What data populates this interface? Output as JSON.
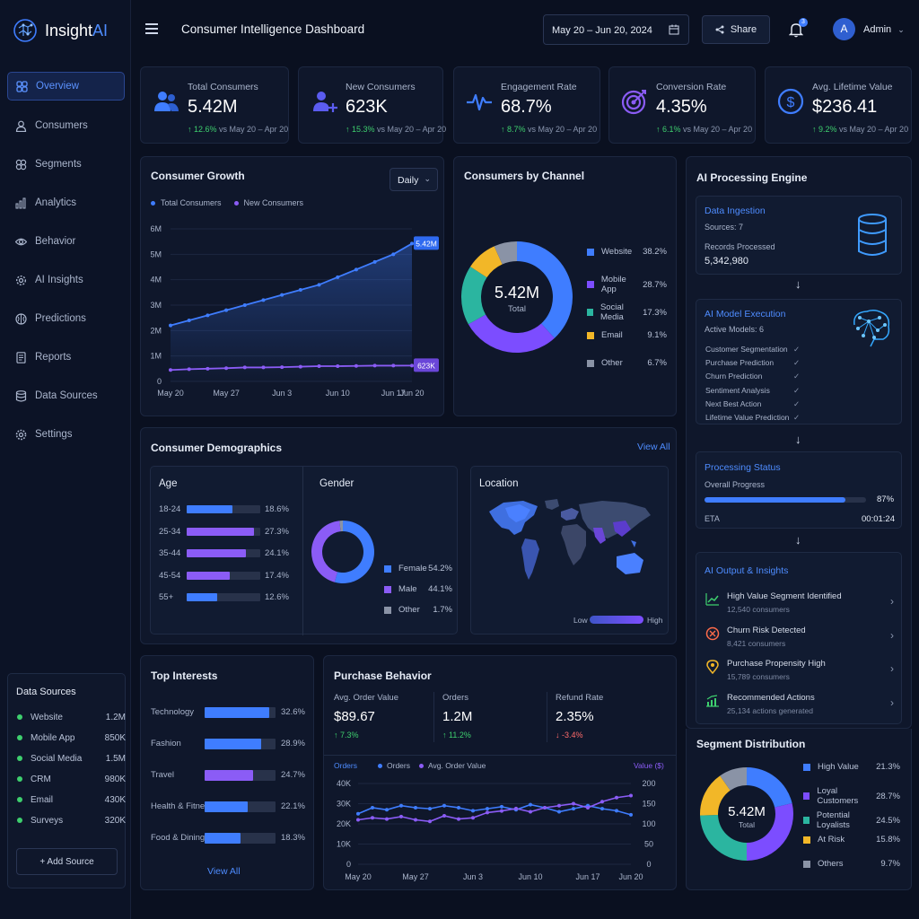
{
  "app": {
    "name_a": "Insight",
    "name_b": "AI"
  },
  "header": {
    "title": "Consumer Intelligence Dashboard",
    "date_range": "May 20 – Jun 20, 2024",
    "share": "Share",
    "notif_count": "3",
    "avatar_initial": "A",
    "user": "Admin"
  },
  "sidebar": {
    "items": [
      {
        "label": "Overview",
        "icon": "grid-icon"
      },
      {
        "label": "Consumers",
        "icon": "user-icon"
      },
      {
        "label": "Segments",
        "icon": "segments-icon"
      },
      {
        "label": "Analytics",
        "icon": "bar-chart-icon"
      },
      {
        "label": "Behavior",
        "icon": "eye-icon"
      },
      {
        "label": "AI Insights",
        "icon": "gear-icon"
      },
      {
        "label": "Predictions",
        "icon": "brain-icon"
      },
      {
        "label": "Reports",
        "icon": "document-icon"
      },
      {
        "label": "Data Sources",
        "icon": "database-icon"
      },
      {
        "label": "Settings",
        "icon": "settings-icon"
      }
    ],
    "data_sources": {
      "title": "Data Sources",
      "rows": [
        {
          "name": "Website",
          "value": "1.2M"
        },
        {
          "name": "Mobile App",
          "value": "850K"
        },
        {
          "name": "Social Media",
          "value": "1.5M"
        },
        {
          "name": "CRM",
          "value": "980K"
        },
        {
          "name": "Email",
          "value": "430K"
        },
        {
          "name": "Surveys",
          "value": "320K"
        }
      ],
      "add_label": "+ Add Source"
    }
  },
  "kpis": [
    {
      "label": "Total Consumers",
      "value": "5.42M",
      "delta": "↑ 12.6%",
      "period": "vs May 20 – Apr 20",
      "icon": "users-icon"
    },
    {
      "label": "New Consumers",
      "value": "623K",
      "delta": "↑ 15.3%",
      "period": "vs May 20 – Apr 20",
      "icon": "user-plus-icon"
    },
    {
      "label": "Engagement Rate",
      "value": "68.7%",
      "delta": "↑ 8.7%",
      "period": "vs May 20 – Apr 20",
      "icon": "pulse-icon"
    },
    {
      "label": "Conversion Rate",
      "value": "4.35%",
      "delta": "↑ 6.1%",
      "period": "vs May 20 – Apr 20",
      "icon": "target-icon"
    },
    {
      "label": "Avg. Lifetime Value",
      "value": "$236.41",
      "delta": "↑ 9.2%",
      "period": "vs May 20 – Apr 20",
      "icon": "dollar-icon"
    }
  ],
  "growth": {
    "title": "Consumer Growth",
    "period_select": "Daily",
    "legend": [
      "Total Consumers",
      "New Consumers"
    ],
    "end_labels": [
      "5.42M",
      "623K"
    ]
  },
  "channel": {
    "title": "Consumers by Channel",
    "center_value": "5.42M",
    "center_label": "Total"
  },
  "demographics": {
    "title": "Consumer Demographics",
    "view_all": "View All",
    "age_title": "Age",
    "gender_title": "Gender",
    "location_title": "Location",
    "legend_low": "Low",
    "legend_high": "High"
  },
  "interests": {
    "title": "Top Interests",
    "view_all": "View All"
  },
  "purchase": {
    "title": "Purchase Behavior",
    "stats": [
      {
        "label": "Avg. Order Value",
        "value": "$89.67",
        "delta": "↑ 7.3%"
      },
      {
        "label": "Orders",
        "value": "1.2M",
        "delta": "↑ 11.2%"
      },
      {
        "label": "Refund Rate",
        "value": "2.35%",
        "delta": "↓ -3.4%"
      }
    ],
    "left_axis_label": "Orders",
    "right_axis_label": "Value ($)",
    "legend": [
      "Orders",
      "Avg. Order Value"
    ]
  },
  "ai_engine": {
    "title": "AI Processing Engine",
    "ingestion": {
      "title": "Data Ingestion",
      "sources": "Sources: 7",
      "records_label": "Records Processed",
      "records": "5,342,980"
    },
    "model": {
      "title": "AI Model Execution",
      "active": "Active Models: 6",
      "models": [
        "Customer Segmentation",
        "Purchase Prediction",
        "Churn Prediction",
        "Sentiment Analysis",
        "Next Best Action",
        "Lifetime Value Prediction"
      ],
      "check": "✓"
    },
    "status": {
      "title": "Processing Status",
      "progress_label": "Overall Progress",
      "progress_text": "87%",
      "progress": 0.87,
      "eta_label": "ETA",
      "eta": "00:01:24"
    },
    "outputs": {
      "title": "AI Output & Insights",
      "rows": [
        {
          "title": "High Value Segment Identified",
          "sub": "12,540 consumers",
          "icon": "trend-up-icon"
        },
        {
          "title": "Churn Risk Detected",
          "sub": "8,421 consumers",
          "icon": "alert-icon"
        },
        {
          "title": "Purchase Propensity High",
          "sub": "15,789 consumers",
          "icon": "location-pin-icon"
        },
        {
          "title": "Recommended Actions",
          "sub": "25,134 actions generated",
          "icon": "chart-up-icon"
        }
      ]
    },
    "arrow": "↓"
  },
  "segments": {
    "title": "Segment Distribution",
    "center_value": "5.42M",
    "center_label": "Total"
  },
  "chart_data": [
    {
      "type": "area",
      "title": "Consumer Growth",
      "x": [
        "May 20",
        "May 23",
        "May 25",
        "May 27",
        "May 30",
        "Jun 1",
        "Jun 3",
        "Jun 6",
        "Jun 8",
        "Jun 10",
        "Jun 13",
        "Jun 15",
        "Jun 17",
        "Jun 20"
      ],
      "xticks": [
        "May 20",
        "May 27",
        "Jun 3",
        "Jun 10",
        "Jun 17",
        "Jun 20"
      ],
      "yticks": [
        "0",
        "1M",
        "2M",
        "3M",
        "4M",
        "5M",
        "6M"
      ],
      "ylim": [
        0,
        6
      ],
      "series": [
        {
          "name": "Total Consumers",
          "values": [
            2.2,
            2.4,
            2.6,
            2.8,
            3.0,
            3.2,
            3.4,
            3.6,
            3.8,
            4.1,
            4.4,
            4.7,
            5.0,
            5.42
          ],
          "color": "#3f7dff"
        },
        {
          "name": "New Consumers",
          "values": [
            0.45,
            0.48,
            0.5,
            0.52,
            0.55,
            0.55,
            0.56,
            0.58,
            0.6,
            0.6,
            0.61,
            0.62,
            0.62,
            0.623
          ],
          "color": "#8b5cf6"
        }
      ]
    },
    {
      "type": "pie",
      "title": "Consumers by Channel",
      "categories": [
        "Website",
        "Mobile App",
        "Social Media",
        "Email",
        "Other"
      ],
      "values": [
        38.2,
        28.7,
        17.3,
        9.1,
        6.7
      ],
      "labels": [
        "38.2%",
        "28.7%",
        "17.3%",
        "9.1%",
        "6.7%"
      ],
      "colors": [
        "#3f7dff",
        "#7c4dff",
        "#2bb5a0",
        "#f2b728",
        "#8a93a6"
      ]
    },
    {
      "type": "bar",
      "title": "Age",
      "categories": [
        "18-24",
        "25-34",
        "35-44",
        "45-54",
        "55+"
      ],
      "values": [
        18.6,
        27.3,
        24.1,
        17.4,
        12.6
      ],
      "labels": [
        "18.6%",
        "27.3%",
        "24.1%",
        "17.4%",
        "12.6%"
      ],
      "colors": [
        "#3f7dff",
        "#8b5cf6",
        "#8b5cf6",
        "#8b5cf6",
        "#3f7dff"
      ]
    },
    {
      "type": "pie",
      "title": "Gender",
      "categories": [
        "Female",
        "Male",
        "Other"
      ],
      "values": [
        54.2,
        44.1,
        1.7
      ],
      "labels": [
        "54.2%",
        "44.1%",
        "1.7%"
      ],
      "colors": [
        "#3f7dff",
        "#8b5cf6",
        "#8a93a6"
      ]
    },
    {
      "type": "bar",
      "title": "Top Interests",
      "categories": [
        "Technology",
        "Fashion",
        "Travel",
        "Health & Fitness",
        "Food & Dining"
      ],
      "values": [
        32.6,
        28.9,
        24.7,
        22.1,
        18.3
      ],
      "labels": [
        "32.6%",
        "28.9%",
        "24.7%",
        "22.1%",
        "18.3%"
      ],
      "colors": [
        "#3f7dff",
        "#3f7dff",
        "#8b5cf6",
        "#3f7dff",
        "#3f7dff"
      ]
    },
    {
      "type": "line",
      "title": "Purchase Behavior",
      "x": [
        "May 20",
        "May 22",
        "May 24",
        "May 25",
        "May 27",
        "May 29",
        "May 31",
        "Jun 1",
        "Jun 3",
        "Jun 5",
        "Jun 7",
        "Jun 8",
        "Jun 10",
        "Jun 12",
        "Jun 14",
        "Jun 15",
        "Jun 17",
        "Jun 18",
        "Jun 19",
        "Jun 20"
      ],
      "xticks": [
        "May 20",
        "May 27",
        "Jun 3",
        "Jun 10",
        "Jun 17",
        "Jun 20"
      ],
      "yticks_left": [
        "0",
        "10K",
        "20K",
        "30K",
        "40K"
      ],
      "yticks_right": [
        "0",
        "50",
        "100",
        "150",
        "200"
      ],
      "ylim": [
        0,
        40000
      ],
      "ylim_right": [
        0,
        200
      ],
      "series": [
        {
          "name": "Orders",
          "axis": "left",
          "values": [
            25000,
            28000,
            27000,
            29000,
            28000,
            27500,
            29000,
            28000,
            26500,
            27500,
            28500,
            27000,
            29500,
            28000,
            26000,
            27500,
            29000,
            27500,
            26500,
            24500
          ],
          "color": "#3f7dff"
        },
        {
          "name": "Avg. Order Value",
          "axis": "right",
          "values": [
            110,
            115,
            112,
            118,
            110,
            106,
            120,
            112,
            115,
            128,
            132,
            138,
            130,
            140,
            145,
            150,
            140,
            155,
            165,
            170
          ],
          "color": "#8b5cf6"
        }
      ]
    },
    {
      "type": "pie",
      "title": "Segment Distribution",
      "categories": [
        "High Value",
        "Loyal Customers",
        "Potential Loyalists",
        "At Risk",
        "Others"
      ],
      "values": [
        21.3,
        28.7,
        24.5,
        15.8,
        9.7
      ],
      "labels": [
        "21.3%",
        "28.7%",
        "24.5%",
        "15.8%",
        "9.7%"
      ],
      "colors": [
        "#3f7dff",
        "#7c4dff",
        "#2bb5a0",
        "#f2b728",
        "#8a93a6"
      ]
    }
  ]
}
